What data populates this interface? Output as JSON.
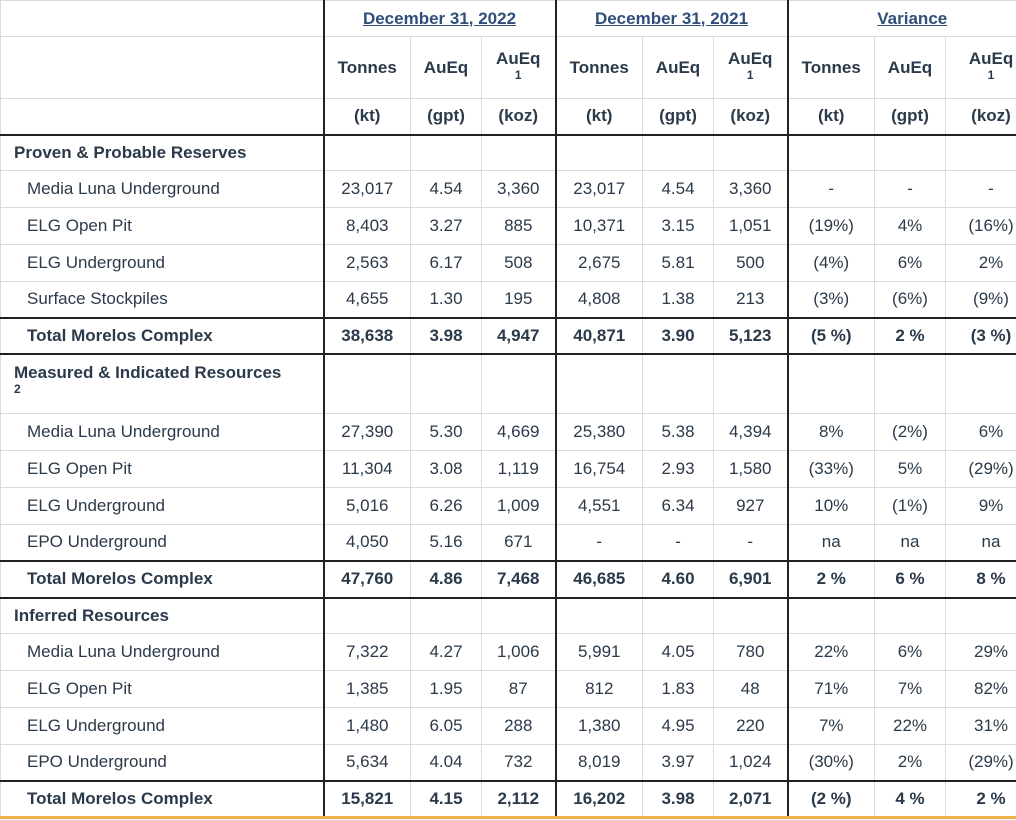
{
  "header": {
    "periods": [
      "December 31, 2022",
      "December 31, 2021",
      "Variance"
    ],
    "columns": [
      {
        "name": "Tonnes",
        "sup": "",
        "unit": "(kt)"
      },
      {
        "name": "AuEq",
        "sup": "",
        "unit": "(gpt)"
      },
      {
        "name": "AuEq",
        "sup": "1",
        "unit": "(koz)"
      }
    ]
  },
  "sections": [
    {
      "title": "Proven & Probable Reserves",
      "sup": "",
      "rows": [
        {
          "label": "Media Luna Underground",
          "values": [
            "23,017",
            "4.54",
            "3,360",
            "23,017",
            "4.54",
            "3,360",
            "-",
            "-",
            "-"
          ]
        },
        {
          "label": "ELG Open Pit",
          "values": [
            "8,403",
            "3.27",
            "885",
            "10,371",
            "3.15",
            "1,051",
            "(19%)",
            "4%",
            "(16%)"
          ]
        },
        {
          "label": "ELG Underground",
          "values": [
            "2,563",
            "6.17",
            "508",
            "2,675",
            "5.81",
            "500",
            "(4%)",
            "6%",
            "2%"
          ]
        },
        {
          "label": "Surface Stockpiles",
          "values": [
            "4,655",
            "1.30",
            "195",
            "4,808",
            "1.38",
            "213",
            "(3%)",
            "(6%)",
            "(9%)"
          ]
        }
      ],
      "total": {
        "label": "Total Morelos Complex",
        "values": [
          "38,638",
          "3.98",
          "4,947",
          "40,871",
          "3.90",
          "5,123",
          "(5 %)",
          "2 %",
          "(3 %)"
        ]
      }
    },
    {
      "title": "Measured & Indicated Resources",
      "sup": "2",
      "rows": [
        {
          "label": "Media Luna Underground",
          "values": [
            "27,390",
            "5.30",
            "4,669",
            "25,380",
            "5.38",
            "4,394",
            "8%",
            "(2%)",
            "6%"
          ]
        },
        {
          "label": "ELG Open Pit",
          "values": [
            "11,304",
            "3.08",
            "1,119",
            "16,754",
            "2.93",
            "1,580",
            "(33%)",
            "5%",
            "(29%)"
          ]
        },
        {
          "label": "ELG Underground",
          "values": [
            "5,016",
            "6.26",
            "1,009",
            "4,551",
            "6.34",
            "927",
            "10%",
            "(1%)",
            "9%"
          ]
        },
        {
          "label": "EPO Underground",
          "values": [
            "4,050",
            "5.16",
            "671",
            "-",
            "-",
            "-",
            "na",
            "na",
            "na"
          ]
        }
      ],
      "total": {
        "label": "Total Morelos Complex",
        "values": [
          "47,760",
          "4.86",
          "7,468",
          "46,685",
          "4.60",
          "6,901",
          "2 %",
          "6 %",
          "8 %"
        ]
      }
    },
    {
      "title": "Inferred Resources",
      "sup": "",
      "rows": [
        {
          "label": "Media Luna Underground",
          "values": [
            "7,322",
            "4.27",
            "1,006",
            "5,991",
            "4.05",
            "780",
            "22%",
            "6%",
            "29%"
          ]
        },
        {
          "label": "ELG Open Pit",
          "values": [
            "1,385",
            "1.95",
            "87",
            "812",
            "1.83",
            "48",
            "71%",
            "7%",
            "82%"
          ]
        },
        {
          "label": "ELG Underground",
          "values": [
            "1,480",
            "6.05",
            "288",
            "1,380",
            "4.95",
            "220",
            "7%",
            "22%",
            "31%"
          ]
        },
        {
          "label": "EPO Underground",
          "values": [
            "5,634",
            "4.04",
            "732",
            "8,019",
            "3.97",
            "1,024",
            "(30%)",
            "2%",
            "(29%)"
          ]
        }
      ],
      "total": {
        "label": "Total Morelos Complex",
        "values": [
          "15,821",
          "4.15",
          "2,112",
          "16,202",
          "3.98",
          "2,071",
          "(2 %)",
          "4 %",
          "2 %"
        ]
      }
    }
  ]
}
